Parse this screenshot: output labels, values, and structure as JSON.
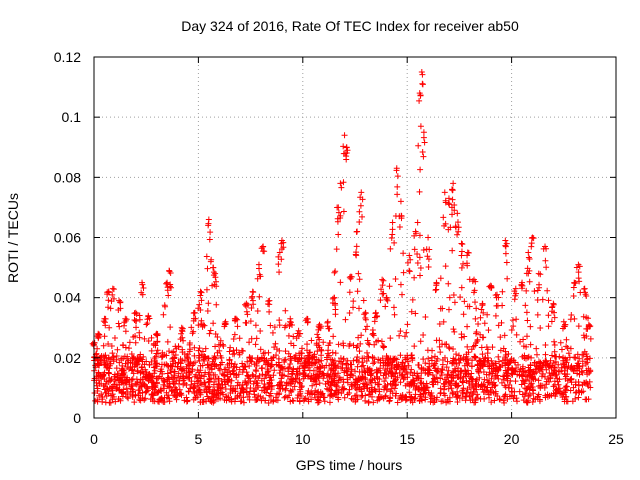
{
  "chart_data": {
    "type": "scatter",
    "title": "Day 324 of 2016, Rate Of TEC Index for receiver ab50",
    "xlabel": "GPS time / hours",
    "ylabel": "ROTI / TECUs",
    "xlim": [
      0,
      25
    ],
    "ylim": [
      0,
      0.12
    ],
    "xticks": [
      "0",
      "5",
      "10",
      "15",
      "20",
      "25"
    ],
    "yticks": [
      "0",
      "0.02",
      "0.04",
      "0.06",
      "0.08",
      "0.1",
      "0.12"
    ],
    "grid": true,
    "marker": "+",
    "color": "#ff0000",
    "baseline_range": [
      0.005,
      0.02
    ],
    "spikes": [
      {
        "x": 0.0,
        "y": 0.025
      },
      {
        "x": 0.2,
        "y": 0.028
      },
      {
        "x": 0.5,
        "y": 0.033
      },
      {
        "x": 0.7,
        "y": 0.042
      },
      {
        "x": 0.9,
        "y": 0.043
      },
      {
        "x": 1.2,
        "y": 0.039
      },
      {
        "x": 1.5,
        "y": 0.033
      },
      {
        "x": 2.0,
        "y": 0.035
      },
      {
        "x": 2.3,
        "y": 0.045
      },
      {
        "x": 2.6,
        "y": 0.034
      },
      {
        "x": 3.0,
        "y": 0.028
      },
      {
        "x": 3.5,
        "y": 0.045
      },
      {
        "x": 3.6,
        "y": 0.049
      },
      {
        "x": 4.2,
        "y": 0.03
      },
      {
        "x": 4.8,
        "y": 0.035
      },
      {
        "x": 5.1,
        "y": 0.042
      },
      {
        "x": 5.5,
        "y": 0.066
      },
      {
        "x": 5.7,
        "y": 0.05
      },
      {
        "x": 5.8,
        "y": 0.048
      },
      {
        "x": 6.3,
        "y": 0.032
      },
      {
        "x": 6.8,
        "y": 0.033
      },
      {
        "x": 7.3,
        "y": 0.038
      },
      {
        "x": 7.6,
        "y": 0.042
      },
      {
        "x": 7.9,
        "y": 0.051
      },
      {
        "x": 8.1,
        "y": 0.057
      },
      {
        "x": 8.4,
        "y": 0.039
      },
      {
        "x": 8.9,
        "y": 0.055
      },
      {
        "x": 9.0,
        "y": 0.059
      },
      {
        "x": 9.4,
        "y": 0.033
      },
      {
        "x": 9.8,
        "y": 0.029
      },
      {
        "x": 10.2,
        "y": 0.033
      },
      {
        "x": 10.8,
        "y": 0.031
      },
      {
        "x": 11.2,
        "y": 0.032
      },
      {
        "x": 11.5,
        "y": 0.04
      },
      {
        "x": 11.7,
        "y": 0.07
      },
      {
        "x": 11.8,
        "y": 0.078
      },
      {
        "x": 12.0,
        "y": 0.094
      },
      {
        "x": 12.1,
        "y": 0.09
      },
      {
        "x": 12.3,
        "y": 0.047
      },
      {
        "x": 12.6,
        "y": 0.062
      },
      {
        "x": 12.8,
        "y": 0.075
      },
      {
        "x": 13.0,
        "y": 0.035
      },
      {
        "x": 13.5,
        "y": 0.035
      },
      {
        "x": 13.8,
        "y": 0.046
      },
      {
        "x": 14.0,
        "y": 0.04
      },
      {
        "x": 14.3,
        "y": 0.065
      },
      {
        "x": 14.5,
        "y": 0.083
      },
      {
        "x": 14.7,
        "y": 0.072
      },
      {
        "x": 15.1,
        "y": 0.054
      },
      {
        "x": 15.4,
        "y": 0.062
      },
      {
        "x": 15.6,
        "y": 0.108
      },
      {
        "x": 15.7,
        "y": 0.115
      },
      {
        "x": 15.8,
        "y": 0.095
      },
      {
        "x": 16.0,
        "y": 0.06
      },
      {
        "x": 16.4,
        "y": 0.045
      },
      {
        "x": 16.8,
        "y": 0.075
      },
      {
        "x": 17.0,
        "y": 0.073
      },
      {
        "x": 17.2,
        "y": 0.078
      },
      {
        "x": 17.4,
        "y": 0.068
      },
      {
        "x": 17.6,
        "y": 0.058
      },
      {
        "x": 17.9,
        "y": 0.055
      },
      {
        "x": 18.2,
        "y": 0.046
      },
      {
        "x": 18.6,
        "y": 0.038
      },
      {
        "x": 19.0,
        "y": 0.044
      },
      {
        "x": 19.3,
        "y": 0.041
      },
      {
        "x": 19.7,
        "y": 0.059
      },
      {
        "x": 20.2,
        "y": 0.043
      },
      {
        "x": 20.5,
        "y": 0.045
      },
      {
        "x": 20.8,
        "y": 0.055
      },
      {
        "x": 21.0,
        "y": 0.06
      },
      {
        "x": 21.3,
        "y": 0.048
      },
      {
        "x": 21.6,
        "y": 0.057
      },
      {
        "x": 22.0,
        "y": 0.038
      },
      {
        "x": 22.5,
        "y": 0.032
      },
      {
        "x": 23.0,
        "y": 0.045
      },
      {
        "x": 23.2,
        "y": 0.051
      },
      {
        "x": 23.5,
        "y": 0.043
      },
      {
        "x": 23.7,
        "y": 0.031
      }
    ]
  }
}
